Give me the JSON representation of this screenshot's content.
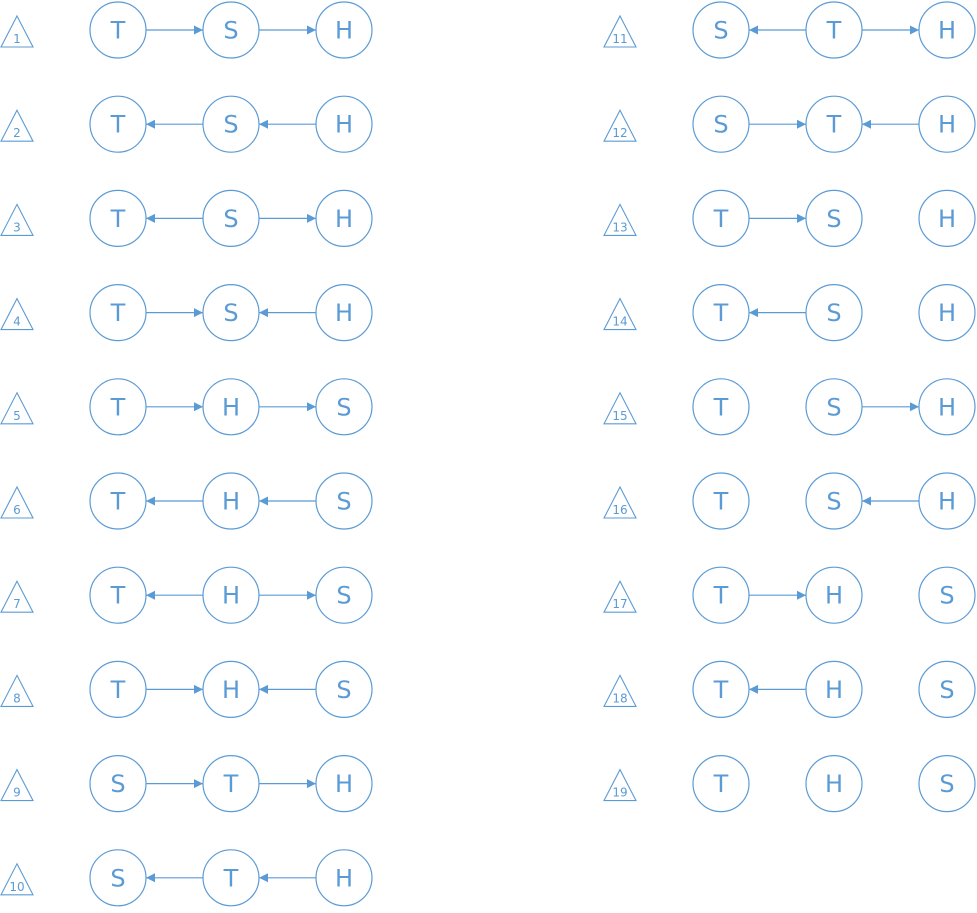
{
  "colors": {
    "stroke": "#5b9bd5",
    "background": "#ffffff"
  },
  "diagrams": [
    {
      "id": "1",
      "nodes": [
        "T",
        "S",
        "H"
      ],
      "edges": [
        "right",
        "right"
      ]
    },
    {
      "id": "2",
      "nodes": [
        "T",
        "S",
        "H"
      ],
      "edges": [
        "left",
        "left"
      ]
    },
    {
      "id": "3",
      "nodes": [
        "T",
        "S",
        "H"
      ],
      "edges": [
        "left",
        "right"
      ]
    },
    {
      "id": "4",
      "nodes": [
        "T",
        "S",
        "H"
      ],
      "edges": [
        "right",
        "left"
      ]
    },
    {
      "id": "5",
      "nodes": [
        "T",
        "H",
        "S"
      ],
      "edges": [
        "right",
        "right"
      ]
    },
    {
      "id": "6",
      "nodes": [
        "T",
        "H",
        "S"
      ],
      "edges": [
        "left",
        "left"
      ]
    },
    {
      "id": "7",
      "nodes": [
        "T",
        "H",
        "S"
      ],
      "edges": [
        "left",
        "right"
      ]
    },
    {
      "id": "8",
      "nodes": [
        "T",
        "H",
        "S"
      ],
      "edges": [
        "right",
        "left"
      ]
    },
    {
      "id": "9",
      "nodes": [
        "S",
        "T",
        "H"
      ],
      "edges": [
        "right",
        "right"
      ]
    },
    {
      "id": "10",
      "nodes": [
        "S",
        "T",
        "H"
      ],
      "edges": [
        "left",
        "left"
      ]
    },
    {
      "id": "11",
      "nodes": [
        "S",
        "T",
        "H"
      ],
      "edges": [
        "left",
        "right"
      ]
    },
    {
      "id": "12",
      "nodes": [
        "S",
        "T",
        "H"
      ],
      "edges": [
        "right",
        "left"
      ]
    },
    {
      "id": "13",
      "nodes": [
        "T",
        "S",
        "H"
      ],
      "edges": [
        "right",
        "none"
      ]
    },
    {
      "id": "14",
      "nodes": [
        "T",
        "S",
        "H"
      ],
      "edges": [
        "left",
        "none"
      ]
    },
    {
      "id": "15",
      "nodes": [
        "T",
        "S",
        "H"
      ],
      "edges": [
        "none",
        "right"
      ]
    },
    {
      "id": "16",
      "nodes": [
        "T",
        "S",
        "H"
      ],
      "edges": [
        "none",
        "left"
      ]
    },
    {
      "id": "17",
      "nodes": [
        "T",
        "H",
        "S"
      ],
      "edges": [
        "right",
        "none"
      ]
    },
    {
      "id": "18",
      "nodes": [
        "T",
        "H",
        "S"
      ],
      "edges": [
        "left",
        "none"
      ]
    },
    {
      "id": "19",
      "nodes": [
        "T",
        "H",
        "S"
      ],
      "edges": [
        "none",
        "none"
      ]
    }
  ]
}
